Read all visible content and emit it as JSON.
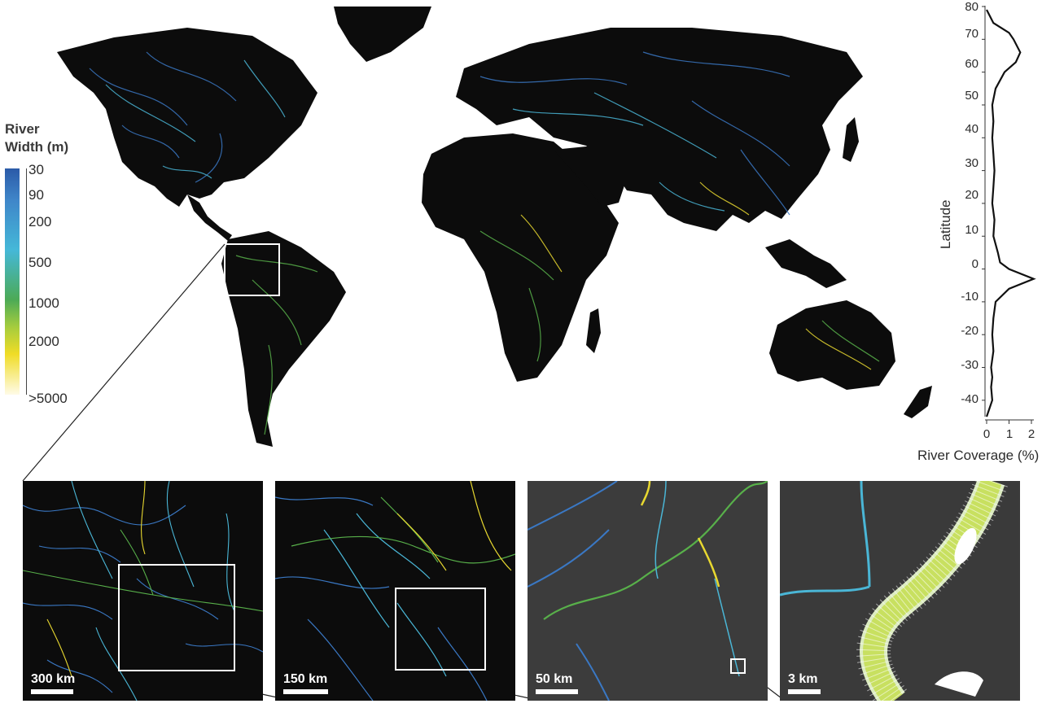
{
  "legend": {
    "title_line1": "River",
    "title_line2": "Width (m)",
    "ticks": [
      "30",
      "90",
      "200",
      "500",
      "1000",
      "2000",
      ">5000"
    ]
  },
  "colors": {
    "land": "#0c0c0c",
    "river_blue": "#3a78c4",
    "river_cyan": "#4ab6d6",
    "river_green": "#58b04a",
    "river_yellow": "#e8d830",
    "background": "#ffffff"
  },
  "profile": {
    "ylabel": "Latitude",
    "xlabel": "River Coverage (%)",
    "yticks": [
      "80",
      "70",
      "60",
      "50",
      "40",
      "30",
      "20",
      "10",
      "0",
      "-10",
      "-20",
      "-30",
      "-40"
    ],
    "xticks": [
      "0",
      "1",
      "2"
    ]
  },
  "chart_data": {
    "type": "line",
    "xlabel": "River Coverage (%)",
    "ylabel": "Latitude",
    "xlim": [
      0,
      2
    ],
    "ylim": [
      -45,
      80
    ],
    "x": [
      0.0,
      0.3,
      1.0,
      1.2,
      1.5,
      1.3,
      0.8,
      0.4,
      0.25,
      0.3,
      0.25,
      0.3,
      0.35,
      0.3,
      0.25,
      0.35,
      0.3,
      0.5,
      0.6,
      1.0,
      2.1,
      1.0,
      0.4,
      0.3,
      0.25,
      0.3,
      0.2,
      0.25,
      0.2,
      0.25,
      0.1,
      0.0
    ],
    "y": [
      79,
      75,
      72,
      70,
      66,
      63,
      60,
      55,
      50,
      45,
      40,
      35,
      30,
      25,
      20,
      15,
      10,
      5,
      2,
      0,
      -3,
      -6,
      -10,
      -15,
      -20,
      -25,
      -30,
      -33,
      -36,
      -40,
      -43,
      -45
    ]
  },
  "panels": [
    {
      "scale_label": "300 km"
    },
    {
      "scale_label": "150 km"
    },
    {
      "scale_label": "50 km"
    },
    {
      "scale_label": "3 km"
    }
  ]
}
